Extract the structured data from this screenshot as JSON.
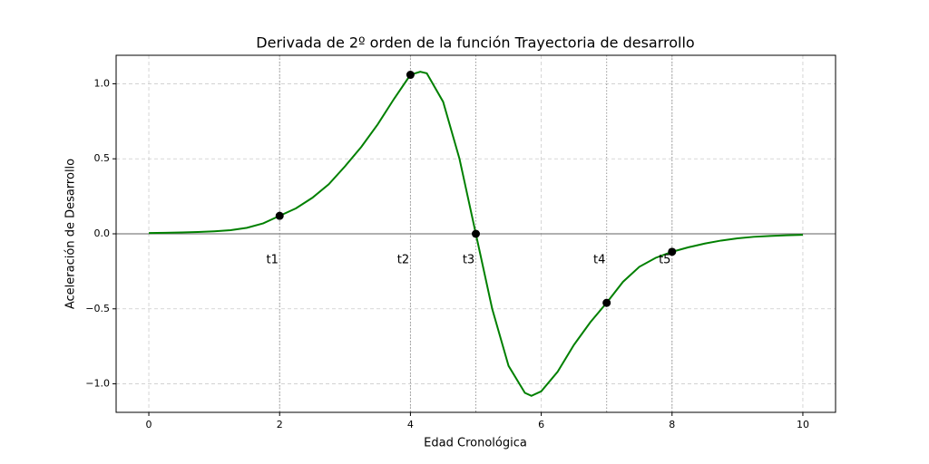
{
  "chart_data": {
    "type": "line",
    "title": "Derivada de 2º orden de la función Trayectoria de desarrollo",
    "xlabel": "Edad Cronológica",
    "ylabel": "Aceleración de Desarrollo",
    "x": [
      0,
      0.25,
      0.5,
      0.75,
      1,
      1.25,
      1.5,
      1.75,
      2,
      2.25,
      2.5,
      2.75,
      3,
      3.25,
      3.5,
      3.75,
      4,
      4.15,
      4.25,
      4.5,
      4.75,
      5,
      5.25,
      5.5,
      5.75,
      5.85,
      6,
      6.25,
      6.5,
      6.75,
      7,
      7.25,
      7.5,
      7.75,
      8,
      8.25,
      8.5,
      8.75,
      9,
      9.25,
      9.5,
      9.75,
      10
    ],
    "series": [
      {
        "color": "#008000",
        "values": [
          0.005,
          0.007,
          0.009,
          0.012,
          0.017,
          0.024,
          0.04,
          0.07,
          0.12,
          0.17,
          0.24,
          0.33,
          0.45,
          0.58,
          0.73,
          0.9,
          1.06,
          1.08,
          1.07,
          0.88,
          0.5,
          0,
          -0.5,
          -0.88,
          -1.06,
          -1.08,
          -1.05,
          -0.92,
          -0.74,
          -0.59,
          -0.46,
          -0.32,
          -0.22,
          -0.16,
          -0.12,
          -0.09,
          -0.065,
          -0.045,
          -0.03,
          -0.02,
          -0.014,
          -0.01,
          -0.007
        ]
      }
    ],
    "points": {
      "color": "#000000",
      "x": [
        2,
        4,
        5,
        7,
        8
      ],
      "values": [
        0.12,
        1.06,
        0,
        -0.46,
        -0.12
      ],
      "labels": [
        "t1",
        "t2",
        "t3",
        "t4",
        "t5"
      ]
    },
    "hline": 0,
    "xlim": [
      -0.5,
      10.5
    ],
    "ylim": [
      -1.19,
      1.19
    ],
    "xticks": [
      0,
      2,
      4,
      6,
      8,
      10
    ],
    "yticks": [
      {
        "value": -1,
        "label": "−1.0"
      },
      {
        "value": -0.5,
        "label": "−0.5"
      },
      {
        "value": 0,
        "label": "0.0"
      },
      0.5,
      {
        "value": 1,
        "label": "1.0"
      }
    ],
    "grid": true
  }
}
